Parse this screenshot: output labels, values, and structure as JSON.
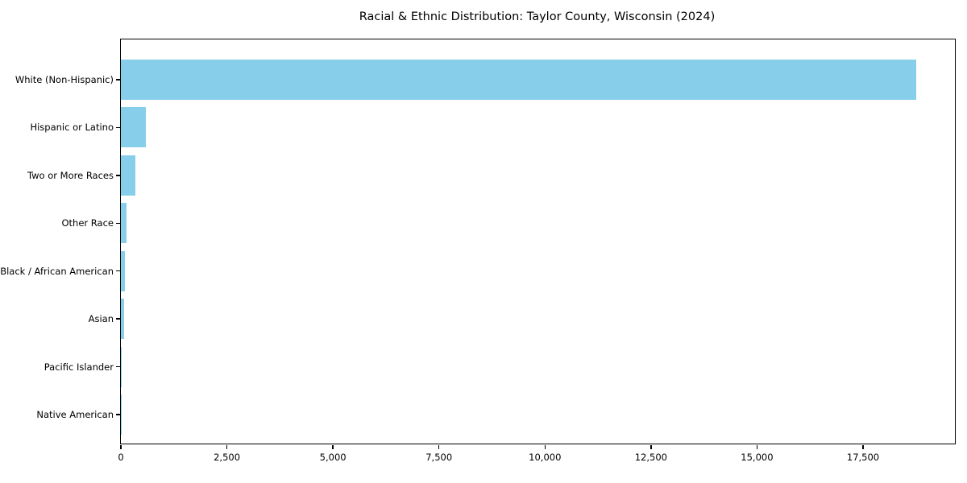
{
  "chart_data": {
    "type": "bar",
    "orientation": "horizontal",
    "title": "Racial & Ethnic Distribution: Taylor County, Wisconsin (2024)",
    "categories": [
      "White (Non-Hispanic)",
      "Hispanic or Latino",
      "Two or More Races",
      "Other Race",
      "Black / African American",
      "Asian",
      "Pacific Islander",
      "Native American"
    ],
    "values": [
      18750,
      590,
      340,
      140,
      95,
      85,
      15,
      5
    ],
    "bar_color": "#87ceeb",
    "xlabel": "",
    "ylabel": "",
    "xlim": [
      0,
      19666
    ],
    "x_ticks": [
      0,
      2500,
      5000,
      7500,
      10000,
      12500,
      15000,
      17500
    ],
    "x_tick_labels": [
      "0",
      "2,500",
      "5,000",
      "7,500",
      "10,000",
      "12,500",
      "15,000",
      "17,500"
    ],
    "grid": false,
    "legend": false,
    "spine_color": "#000000",
    "background_color": "#ffffff"
  }
}
